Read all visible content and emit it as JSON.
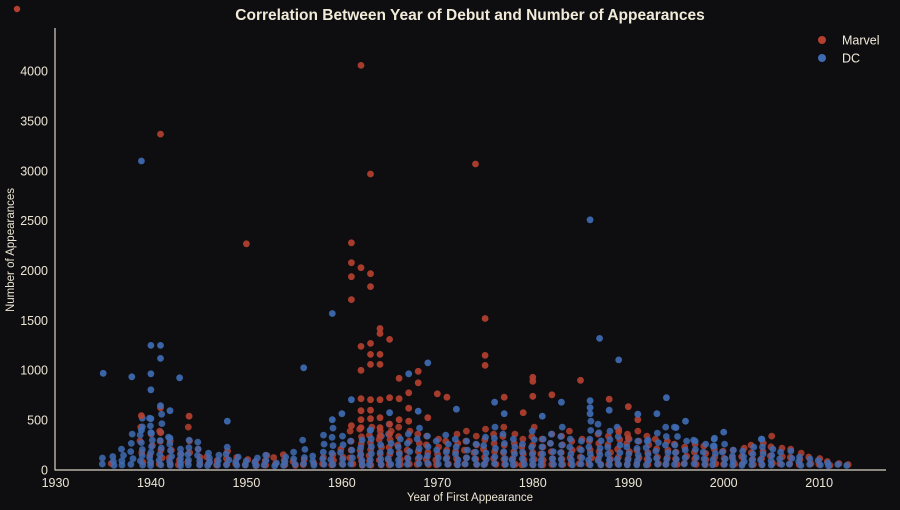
{
  "chart_data": {
    "type": "scatter",
    "title": "Correlation Between Year of Debut and Number of Appearances",
    "xlabel": "Year of First Appearance",
    "ylabel": "Number of Appearances",
    "xlim": [
      1929.95,
      2017.0
    ],
    "ylim": [
      0,
      4435
    ],
    "xticks": [
      1930,
      1940,
      1950,
      1960,
      1970,
      1980,
      1990,
      2000,
      2010
    ],
    "yticks": [
      0,
      500,
      1000,
      1500,
      2000,
      2500,
      3000,
      3500,
      4000
    ],
    "legend_position": "top-right",
    "background_color": "#0e0e11",
    "text_color": "#ece5d4",
    "axis_color": "#d8d2c3",
    "marker_radius": 3.4,
    "series": [
      {
        "name": "Marvel",
        "color": "#b5402f",
        "points": [
          [
            1941,
            3370
          ],
          [
            1962,
            4060
          ],
          [
            1963,
            2970
          ],
          [
            1974,
            3070
          ],
          [
            1950,
            2270
          ],
          [
            1961,
            2280
          ],
          [
            1961,
            2080
          ],
          [
            1962,
            2030
          ],
          [
            1963,
            1970
          ],
          [
            1961,
            1940
          ],
          [
            1963,
            1840
          ],
          [
            1961,
            1710
          ],
          [
            1975,
            1520
          ],
          [
            1964,
            1420
          ],
          [
            1964,
            1370
          ],
          [
            1965,
            1310
          ],
          [
            1963,
            1270
          ],
          [
            1962,
            1240
          ],
          [
            1963,
            1160
          ],
          [
            1964,
            1160
          ],
          [
            1975,
            1150
          ],
          [
            1963,
            1060
          ],
          [
            1964,
            1060
          ],
          [
            1975,
            1050
          ],
          [
            1962,
            1000
          ],
          [
            1968,
            990
          ],
          [
            1980,
            930
          ],
          [
            1966,
            920
          ],
          [
            1985,
            900
          ],
          [
            1980,
            890
          ],
          [
            1968,
            875
          ],
          [
            1967,
            775
          ],
          [
            1970,
            765
          ],
          [
            1982,
            755
          ],
          [
            1980,
            740
          ],
          [
            1977,
            730
          ],
          [
            1971,
            730
          ],
          [
            1962,
            715
          ],
          [
            1966,
            715
          ],
          [
            1965,
            725
          ],
          [
            1963,
            705
          ],
          [
            1964,
            705
          ],
          [
            1988,
            710
          ],
          [
            1941,
            625
          ],
          [
            1967,
            620
          ],
          [
            1990,
            635
          ],
          [
            1962,
            595
          ],
          [
            1963,
            600
          ],
          [
            1979,
            575
          ],
          [
            1939,
            545
          ],
          [
            1944,
            540
          ],
          [
            1962,
            505
          ],
          [
            1963,
            515
          ],
          [
            1964,
            525
          ],
          [
            1966,
            505
          ],
          [
            1969,
            525
          ],
          [
            1991,
            505
          ],
          [
            1967,
            490
          ],
          [
            1961,
            445
          ],
          [
            1965,
            460
          ],
          [
            1962,
            425
          ],
          [
            1964,
            425
          ],
          [
            1964,
            340
          ],
          [
            1965,
            360
          ],
          [
            1941,
            375
          ],
          [
            1989,
            385
          ],
          [
            1990,
            320
          ]
        ],
        "stacks": [
          [
            1936,
            1,
            65
          ],
          [
            1939,
            4,
            430
          ],
          [
            1940,
            4,
            360
          ],
          [
            1941,
            5,
            390
          ],
          [
            1942,
            4,
            290
          ],
          [
            1943,
            3,
            160
          ],
          [
            1944,
            4,
            430
          ],
          [
            1945,
            3,
            210
          ],
          [
            1946,
            2,
            130
          ],
          [
            1947,
            2,
            95
          ],
          [
            1948,
            3,
            190
          ],
          [
            1949,
            2,
            125
          ],
          [
            1950,
            2,
            105
          ],
          [
            1951,
            2,
            85
          ],
          [
            1952,
            3,
            145
          ],
          [
            1953,
            2,
            125
          ],
          [
            1954,
            3,
            155
          ],
          [
            1955,
            2,
            85
          ],
          [
            1956,
            2,
            105
          ],
          [
            1957,
            1,
            65
          ],
          [
            1958,
            2,
            125
          ],
          [
            1959,
            3,
            155
          ],
          [
            1960,
            3,
            210
          ],
          [
            1961,
            5,
            390
          ],
          [
            1962,
            7,
            410
          ],
          [
            1963,
            7,
            430
          ],
          [
            1964,
            6,
            390
          ],
          [
            1965,
            6,
            390
          ],
          [
            1966,
            6,
            430
          ],
          [
            1967,
            5,
            390
          ],
          [
            1968,
            5,
            360
          ],
          [
            1969,
            5,
            340
          ],
          [
            1970,
            5,
            310
          ],
          [
            1971,
            4,
            290
          ],
          [
            1972,
            5,
            360
          ],
          [
            1973,
            5,
            390
          ],
          [
            1974,
            5,
            340
          ],
          [
            1975,
            5,
            410
          ],
          [
            1976,
            5,
            360
          ],
          [
            1977,
            6,
            430
          ],
          [
            1978,
            5,
            360
          ],
          [
            1979,
            5,
            310
          ],
          [
            1980,
            6,
            430
          ],
          [
            1981,
            5,
            310
          ],
          [
            1982,
            5,
            360
          ],
          [
            1983,
            5,
            340
          ],
          [
            1984,
            5,
            390
          ],
          [
            1985,
            4,
            310
          ],
          [
            1986,
            4,
            290
          ],
          [
            1987,
            5,
            360
          ],
          [
            1988,
            5,
            340
          ],
          [
            1989,
            5,
            410
          ],
          [
            1990,
            5,
            360
          ],
          [
            1991,
            5,
            390
          ],
          [
            1992,
            5,
            340
          ],
          [
            1993,
            4,
            310
          ],
          [
            1994,
            4,
            290
          ],
          [
            1995,
            4,
            260
          ],
          [
            1996,
            3,
            230
          ],
          [
            1997,
            4,
            260
          ],
          [
            1998,
            4,
            240
          ],
          [
            1999,
            3,
            210
          ],
          [
            2000,
            3,
            190
          ],
          [
            2001,
            3,
            200
          ],
          [
            2002,
            3,
            220
          ],
          [
            2003,
            4,
            250
          ],
          [
            2004,
            4,
            270
          ],
          [
            2005,
            4,
            340
          ],
          [
            2006,
            3,
            220
          ],
          [
            2007,
            3,
            210
          ],
          [
            2008,
            3,
            170
          ],
          [
            2009,
            2,
            130
          ],
          [
            2010,
            2,
            115
          ],
          [
            2011,
            2,
            85
          ],
          [
            2012,
            1,
            65
          ],
          [
            2013,
            1,
            55
          ]
        ]
      },
      {
        "name": "DC",
        "color": "#3e6bb3",
        "points": [
          [
            1939,
            3100
          ],
          [
            1986,
            2510
          ],
          [
            1959,
            1570
          ],
          [
            1987,
            1320
          ],
          [
            1989,
            1105
          ],
          [
            1940,
            1250
          ],
          [
            1941,
            1250
          ],
          [
            1941,
            1120
          ],
          [
            1969,
            1075
          ],
          [
            1956,
            1025
          ],
          [
            1935,
            970
          ],
          [
            1940,
            965
          ],
          [
            1967,
            965
          ],
          [
            1938,
            935
          ],
          [
            1943,
            925
          ],
          [
            1940,
            805
          ],
          [
            1994,
            725
          ],
          [
            1961,
            705
          ],
          [
            1986,
            695
          ],
          [
            1983,
            680
          ],
          [
            1976,
            680
          ],
          [
            1941,
            645
          ],
          [
            1986,
            625
          ],
          [
            1988,
            600
          ],
          [
            1942,
            595
          ],
          [
            1968,
            590
          ],
          [
            1972,
            610
          ],
          [
            1965,
            575
          ],
          [
            1960,
            565
          ],
          [
            1977,
            565
          ],
          [
            1993,
            565
          ],
          [
            1986,
            565
          ],
          [
            1991,
            560
          ],
          [
            1981,
            540
          ],
          [
            1940,
            515
          ],
          [
            1959,
            505
          ],
          [
            1948,
            490
          ],
          [
            1996,
            490
          ],
          [
            1995,
            425
          ],
          [
            1963,
            400
          ],
          [
            1939,
            400
          ],
          [
            2000,
            380
          ],
          [
            1940,
            375
          ],
          [
            1942,
            320
          ],
          [
            1999,
            310
          ],
          [
            2004,
            310
          ],
          [
            1992,
            290
          ],
          [
            1997,
            290
          ],
          [
            1999,
            240
          ]
        ],
        "stacks": [
          [
            1935,
            2,
            120
          ],
          [
            1936,
            3,
            135
          ],
          [
            1937,
            4,
            210
          ],
          [
            1938,
            5,
            360
          ],
          [
            1939,
            8,
            520
          ],
          [
            1940,
            9,
            520
          ],
          [
            1941,
            8,
            560
          ],
          [
            1942,
            6,
            330
          ],
          [
            1943,
            5,
            210
          ],
          [
            1944,
            5,
            300
          ],
          [
            1945,
            5,
            280
          ],
          [
            1946,
            4,
            170
          ],
          [
            1947,
            3,
            150
          ],
          [
            1948,
            4,
            230
          ],
          [
            1949,
            3,
            130
          ],
          [
            1950,
            2,
            90
          ],
          [
            1951,
            3,
            120
          ],
          [
            1952,
            3,
            150
          ],
          [
            1953,
            2,
            70
          ],
          [
            1954,
            3,
            130
          ],
          [
            1955,
            3,
            180
          ],
          [
            1956,
            4,
            300
          ],
          [
            1957,
            3,
            140
          ],
          [
            1958,
            5,
            350
          ],
          [
            1959,
            6,
            420
          ],
          [
            1960,
            5,
            340
          ],
          [
            1961,
            4,
            290
          ],
          [
            1962,
            5,
            300
          ],
          [
            1963,
            6,
            400
          ],
          [
            1964,
            5,
            340
          ],
          [
            1965,
            6,
            460
          ],
          [
            1966,
            5,
            310
          ],
          [
            1967,
            5,
            360
          ],
          [
            1968,
            5,
            420
          ],
          [
            1969,
            4,
            340
          ],
          [
            1970,
            4,
            290
          ],
          [
            1971,
            5,
            350
          ],
          [
            1972,
            5,
            310
          ],
          [
            1973,
            4,
            290
          ],
          [
            1974,
            4,
            260
          ],
          [
            1975,
            5,
            330
          ],
          [
            1976,
            5,
            430
          ],
          [
            1977,
            5,
            360
          ],
          [
            1978,
            5,
            310
          ],
          [
            1979,
            4,
            260
          ],
          [
            1980,
            6,
            390
          ],
          [
            1981,
            5,
            310
          ],
          [
            1982,
            5,
            360
          ],
          [
            1983,
            6,
            430
          ],
          [
            1984,
            5,
            310
          ],
          [
            1985,
            4,
            290
          ],
          [
            1986,
            7,
            490
          ],
          [
            1987,
            7,
            460
          ],
          [
            1988,
            6,
            390
          ],
          [
            1989,
            6,
            430
          ],
          [
            1990,
            5,
            310
          ],
          [
            1991,
            5,
            290
          ],
          [
            1992,
            5,
            300
          ],
          [
            1993,
            5,
            370
          ],
          [
            1994,
            6,
            430
          ],
          [
            1995,
            6,
            430
          ],
          [
            1996,
            4,
            290
          ],
          [
            1997,
            4,
            300
          ],
          [
            1998,
            4,
            260
          ],
          [
            1999,
            5,
            320
          ],
          [
            2000,
            4,
            260
          ],
          [
            2001,
            4,
            200
          ],
          [
            2002,
            4,
            190
          ],
          [
            2003,
            4,
            230
          ],
          [
            2004,
            5,
            310
          ],
          [
            2005,
            4,
            210
          ],
          [
            2006,
            3,
            180
          ],
          [
            2007,
            3,
            190
          ],
          [
            2008,
            3,
            130
          ],
          [
            2009,
            2,
            110
          ],
          [
            2010,
            2,
            95
          ],
          [
            2011,
            2,
            70
          ],
          [
            2012,
            1,
            55
          ],
          [
            2013,
            1,
            45
          ]
        ]
      }
    ]
  },
  "misc": {
    "corner_dot_color": "#b5402f"
  }
}
